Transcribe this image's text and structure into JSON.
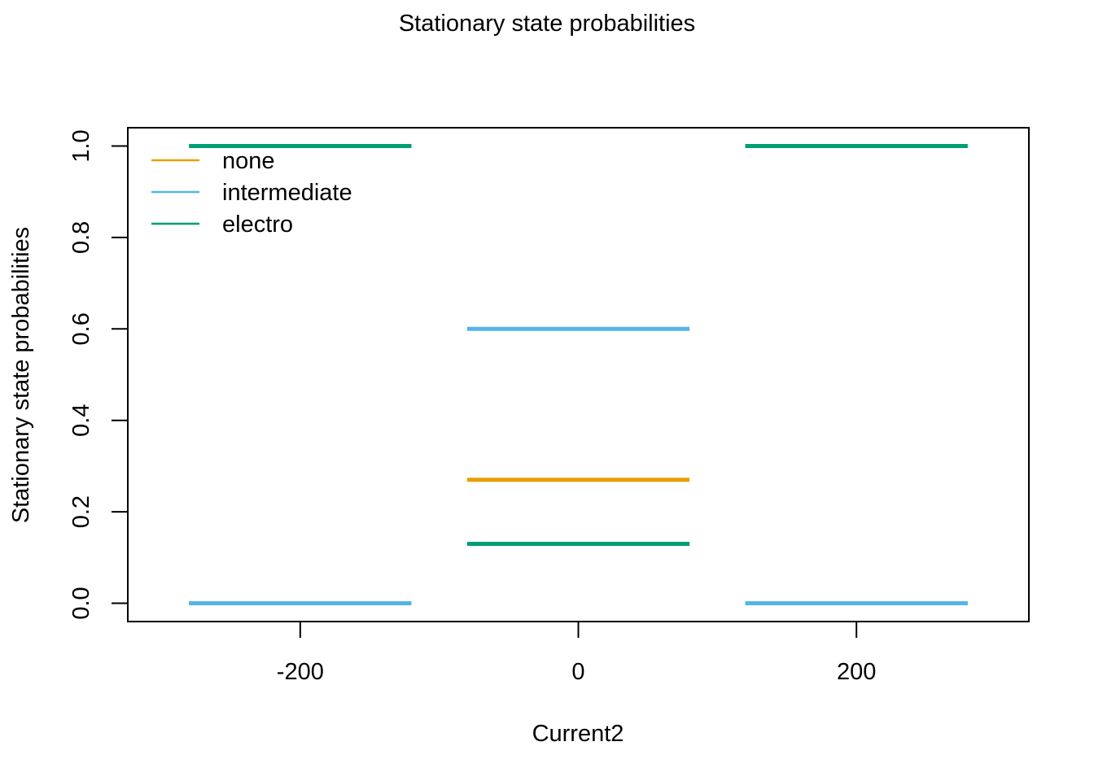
{
  "chart_data": {
    "type": "line",
    "title": "Stationary state probabilities",
    "xlabel": "Current2",
    "ylabel": "Stationary state probabilities",
    "xlim": [
      -324,
      324
    ],
    "ylim": [
      -0.04,
      1.04
    ],
    "x_ticks": [
      -200,
      0,
      200
    ],
    "x_tick_labels": [
      "-200",
      "0",
      "200"
    ],
    "y_ticks": [
      0.0,
      0.2,
      0.4,
      0.6,
      0.8,
      1.0
    ],
    "y_tick_labels": [
      "0.0",
      "0.2",
      "0.4",
      "0.6",
      "0.8",
      "1.0"
    ],
    "grid": false,
    "legend_position": "top-left",
    "series": [
      {
        "name": "none",
        "color": "#E69F00",
        "segments": [
          {
            "x_start": -280,
            "x_end": -120,
            "y": 0.0
          },
          {
            "x_start": -80,
            "x_end": 80,
            "y": 0.27
          },
          {
            "x_start": 120,
            "x_end": 280,
            "y": 0.0
          }
        ]
      },
      {
        "name": "intermediate",
        "color": "#56B4E9",
        "segments": [
          {
            "x_start": -280,
            "x_end": -120,
            "y": 0.0
          },
          {
            "x_start": -80,
            "x_end": 80,
            "y": 0.6
          },
          {
            "x_start": 120,
            "x_end": 280,
            "y": 0.0
          }
        ]
      },
      {
        "name": "electro",
        "color": "#009E73",
        "segments": [
          {
            "x_start": -280,
            "x_end": -120,
            "y": 1.0
          },
          {
            "x_start": -80,
            "x_end": 80,
            "y": 0.13
          },
          {
            "x_start": 120,
            "x_end": 280,
            "y": 1.0
          }
        ]
      }
    ]
  }
}
